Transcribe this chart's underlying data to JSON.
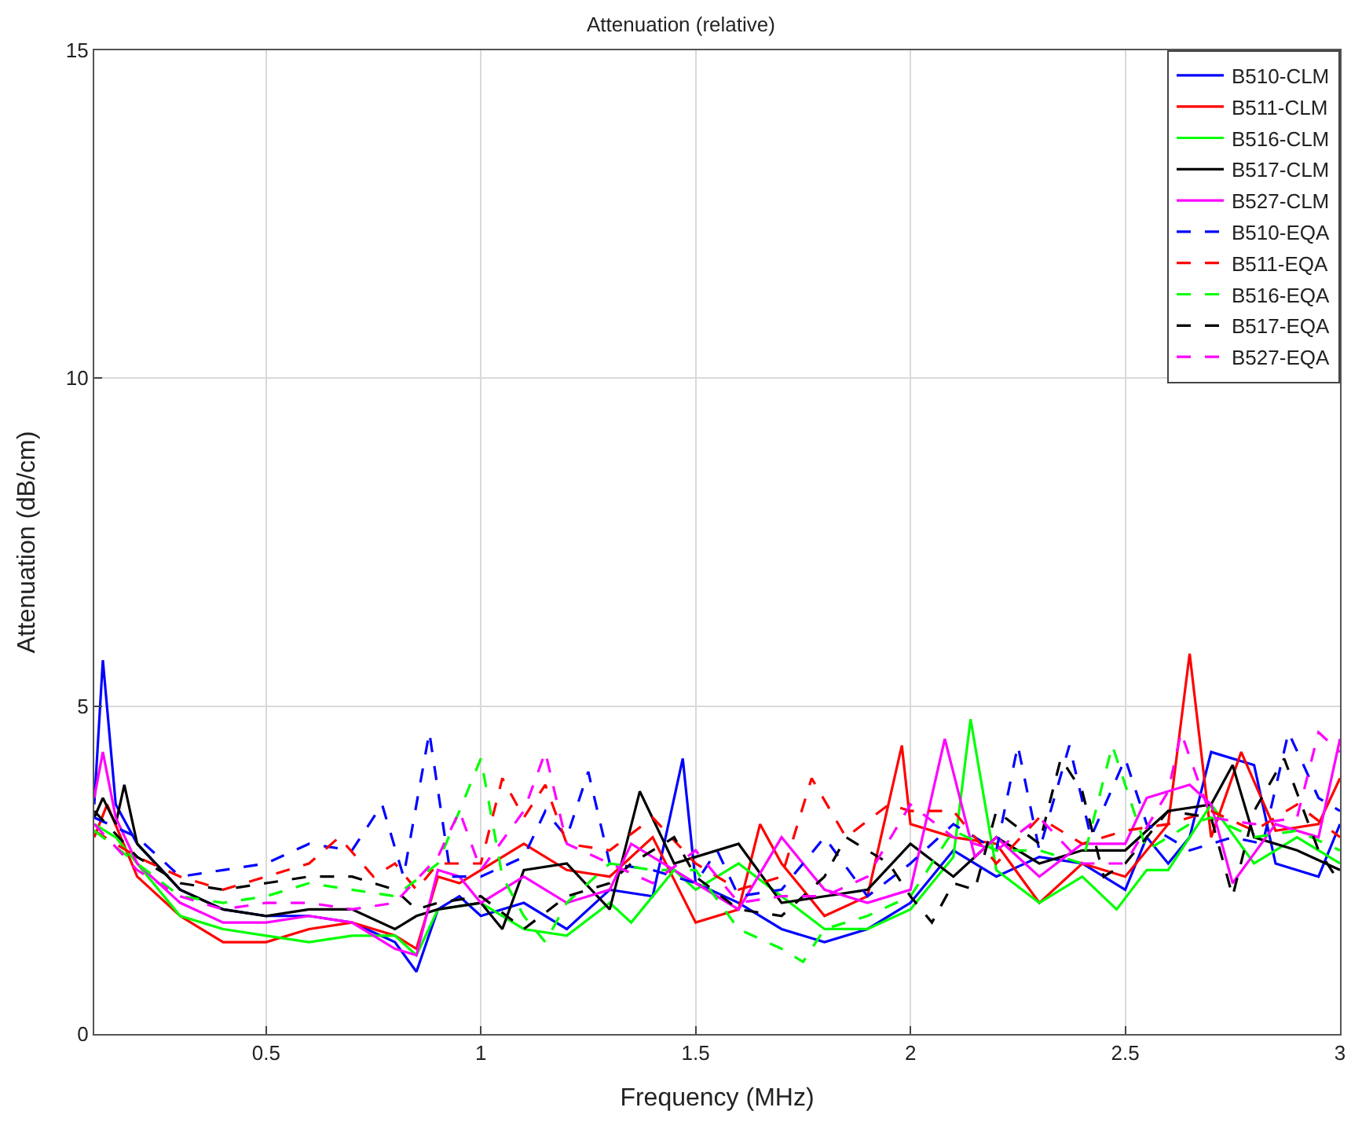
{
  "chart_data": {
    "type": "line",
    "title": "Attenuation (relative)",
    "xlabel": "Frequency (MHz)",
    "ylabel": "Attenuation (dB/cm)",
    "xlim": [
      0.1,
      3
    ],
    "ylim": [
      0,
      15
    ],
    "xticks": [
      0.5,
      1,
      1.5,
      2,
      2.5,
      3
    ],
    "yticks": [
      0,
      5,
      10,
      15
    ],
    "grid": true,
    "legend": "top right",
    "marker": "none",
    "series": [
      {
        "name": "B510-CLM",
        "color": "#0000ff",
        "line_style": "solid",
        "x": [
          0.1,
          0.12,
          0.15,
          0.2,
          0.3,
          0.4,
          0.5,
          0.6,
          0.7,
          0.8,
          0.85,
          0.9,
          0.95,
          1.0,
          1.1,
          1.2,
          1.3,
          1.4,
          1.47,
          1.5,
          1.6,
          1.7,
          1.8,
          1.9,
          2.0,
          2.1,
          2.2,
          2.3,
          2.4,
          2.5,
          2.55,
          2.6,
          2.65,
          2.7,
          2.8,
          2.85,
          2.95,
          3.0
        ],
        "values": [
          3.5,
          5.7,
          3.5,
          2.9,
          2.2,
          1.9,
          1.8,
          1.8,
          1.7,
          1.4,
          0.95,
          1.9,
          2.1,
          1.8,
          2.0,
          1.6,
          2.2,
          2.1,
          4.2,
          2.3,
          2.0,
          1.6,
          1.4,
          1.6,
          2.0,
          2.8,
          2.4,
          2.7,
          2.6,
          2.2,
          3.0,
          2.6,
          3.0,
          4.3,
          4.1,
          2.6,
          2.4,
          3.2
        ]
      },
      {
        "name": "B511-CLM",
        "color": "#ff0000",
        "line_style": "solid",
        "x": [
          0.1,
          0.13,
          0.2,
          0.3,
          0.4,
          0.5,
          0.6,
          0.7,
          0.8,
          0.85,
          0.9,
          0.95,
          1.0,
          1.1,
          1.2,
          1.3,
          1.4,
          1.5,
          1.6,
          1.65,
          1.7,
          1.8,
          1.9,
          1.98,
          2.0,
          2.1,
          2.2,
          2.3,
          2.4,
          2.5,
          2.6,
          2.65,
          2.7,
          2.77,
          2.85,
          2.95,
          3.0
        ],
        "values": [
          3.0,
          3.5,
          2.4,
          1.8,
          1.4,
          1.4,
          1.6,
          1.7,
          1.5,
          1.3,
          2.4,
          2.3,
          2.5,
          2.9,
          2.5,
          2.4,
          3.0,
          1.7,
          1.9,
          3.2,
          2.6,
          1.8,
          2.1,
          4.4,
          3.2,
          3.0,
          2.9,
          2.0,
          2.6,
          2.4,
          3.2,
          5.8,
          3.0,
          4.3,
          3.1,
          3.2,
          3.9
        ]
      },
      {
        "name": "B516-CLM",
        "color": "#00ff00",
        "line_style": "solid",
        "x": [
          0.1,
          0.15,
          0.2,
          0.3,
          0.4,
          0.5,
          0.6,
          0.7,
          0.8,
          0.85,
          0.9,
          1.0,
          1.1,
          1.2,
          1.3,
          1.35,
          1.45,
          1.5,
          1.6,
          1.7,
          1.8,
          1.9,
          2.0,
          2.1,
          2.14,
          2.2,
          2.3,
          2.4,
          2.48,
          2.55,
          2.6,
          2.7,
          2.8,
          2.9,
          3.0
        ],
        "values": [
          3.2,
          3.0,
          2.6,
          1.8,
          1.6,
          1.5,
          1.4,
          1.5,
          1.5,
          1.2,
          1.9,
          2.0,
          1.6,
          1.5,
          2.0,
          1.7,
          2.5,
          2.2,
          2.6,
          2.1,
          1.6,
          1.6,
          1.9,
          2.7,
          4.8,
          2.5,
          2.0,
          2.4,
          1.9,
          2.5,
          2.5,
          3.5,
          2.6,
          3.0,
          2.6
        ]
      },
      {
        "name": "B517-CLM",
        "color": "#000000",
        "line_style": "solid",
        "x": [
          0.1,
          0.12,
          0.15,
          0.17,
          0.2,
          0.3,
          0.4,
          0.5,
          0.6,
          0.7,
          0.8,
          0.85,
          0.9,
          1.0,
          1.05,
          1.1,
          1.2,
          1.3,
          1.37,
          1.45,
          1.5,
          1.6,
          1.7,
          1.8,
          1.9,
          2.0,
          2.1,
          2.2,
          2.3,
          2.4,
          2.5,
          2.6,
          2.7,
          2.75,
          2.8,
          2.9,
          3.0
        ],
        "values": [
          3.3,
          3.6,
          3.2,
          3.8,
          2.9,
          2.2,
          1.9,
          1.8,
          1.9,
          1.9,
          1.6,
          1.8,
          1.9,
          2.0,
          1.6,
          2.5,
          2.6,
          1.9,
          3.7,
          2.6,
          2.7,
          2.9,
          2.0,
          2.1,
          2.2,
          2.9,
          2.4,
          3.0,
          2.6,
          2.8,
          2.8,
          3.4,
          3.5,
          4.1,
          3.0,
          2.8,
          2.5
        ]
      },
      {
        "name": "B527-CLM",
        "color": "#ff00ff",
        "line_style": "solid",
        "x": [
          0.1,
          0.12,
          0.15,
          0.2,
          0.3,
          0.4,
          0.5,
          0.6,
          0.7,
          0.8,
          0.85,
          0.9,
          0.95,
          1.0,
          1.1,
          1.2,
          1.3,
          1.35,
          1.45,
          1.5,
          1.6,
          1.7,
          1.8,
          1.9,
          2.0,
          2.08,
          2.15,
          2.2,
          2.3,
          2.4,
          2.5,
          2.55,
          2.65,
          2.7,
          2.75,
          2.85,
          2.95,
          3.0
        ],
        "values": [
          3.6,
          4.3,
          3.3,
          2.6,
          2.0,
          1.7,
          1.7,
          1.8,
          1.7,
          1.3,
          1.2,
          2.5,
          2.4,
          2.0,
          2.4,
          2.0,
          2.2,
          2.9,
          2.5,
          2.3,
          1.9,
          3.0,
          2.2,
          2.0,
          2.2,
          4.5,
          2.7,
          3.0,
          2.4,
          2.9,
          2.9,
          3.6,
          3.8,
          3.5,
          2.3,
          3.2,
          3.0,
          4.5
        ]
      },
      {
        "name": "B510-EQA",
        "color": "#0000ff",
        "line_style": "dashed",
        "x": [
          0.1,
          0.2,
          0.3,
          0.4,
          0.5,
          0.6,
          0.7,
          0.77,
          0.82,
          0.88,
          0.93,
          1.0,
          1.1,
          1.15,
          1.2,
          1.25,
          1.3,
          1.4,
          1.5,
          1.55,
          1.6,
          1.7,
          1.8,
          1.9,
          2.0,
          2.1,
          2.2,
          2.25,
          2.3,
          2.37,
          2.42,
          2.5,
          2.55,
          2.65,
          2.75,
          2.82,
          2.88,
          2.95,
          3.0
        ],
        "values": [
          3.3,
          3.0,
          2.4,
          2.5,
          2.6,
          2.9,
          2.8,
          3.5,
          2.4,
          4.6,
          2.4,
          2.4,
          2.7,
          3.4,
          3.0,
          4.0,
          2.6,
          2.5,
          2.3,
          2.8,
          2.1,
          2.2,
          3.0,
          2.1,
          2.6,
          3.2,
          2.8,
          4.4,
          2.8,
          4.4,
          3.0,
          4.2,
          3.2,
          2.8,
          3.0,
          2.9,
          4.6,
          3.6,
          3.4
        ]
      },
      {
        "name": "B511-EQA",
        "color": "#ff0000",
        "line_style": "dashed",
        "x": [
          0.1,
          0.2,
          0.3,
          0.4,
          0.5,
          0.6,
          0.67,
          0.75,
          0.8,
          0.85,
          0.9,
          1.0,
          1.05,
          1.1,
          1.15,
          1.2,
          1.3,
          1.4,
          1.5,
          1.6,
          1.7,
          1.77,
          1.85,
          1.95,
          2.0,
          2.1,
          2.2,
          2.3,
          2.4,
          2.5,
          2.6,
          2.7,
          2.8,
          2.9,
          3.0
        ],
        "values": [
          3.1,
          2.7,
          2.4,
          2.2,
          2.4,
          2.6,
          3.0,
          2.4,
          2.6,
          2.2,
          2.6,
          2.6,
          3.9,
          3.3,
          3.8,
          2.9,
          2.8,
          3.3,
          2.6,
          2.2,
          2.4,
          3.9,
          3.0,
          3.5,
          3.4,
          3.4,
          2.6,
          3.3,
          2.9,
          3.1,
          3.2,
          3.4,
          3.1,
          3.5,
          3.0
        ]
      },
      {
        "name": "B516-EQA",
        "color": "#00ff00",
        "line_style": "dashed",
        "x": [
          0.1,
          0.2,
          0.3,
          0.4,
          0.5,
          0.6,
          0.7,
          0.8,
          0.9,
          1.0,
          1.05,
          1.1,
          1.15,
          1.2,
          1.3,
          1.4,
          1.5,
          1.6,
          1.7,
          1.75,
          1.8,
          1.9,
          2.0,
          2.1,
          2.2,
          2.3,
          2.4,
          2.47,
          2.55,
          2.65,
          2.7,
          2.8,
          2.9,
          3.0
        ],
        "values": [
          3.1,
          2.6,
          2.1,
          2.0,
          2.1,
          2.3,
          2.2,
          2.1,
          2.6,
          4.2,
          2.4,
          1.8,
          1.4,
          2.0,
          2.6,
          2.5,
          2.5,
          1.6,
          1.3,
          1.1,
          1.6,
          1.8,
          2.1,
          3.1,
          2.8,
          2.8,
          2.6,
          4.4,
          2.8,
          3.2,
          3.3,
          3.0,
          3.1,
          2.8
        ]
      },
      {
        "name": "B517-EQA",
        "color": "#000000",
        "line_style": "dashed",
        "x": [
          0.1,
          0.2,
          0.3,
          0.4,
          0.5,
          0.6,
          0.7,
          0.8,
          0.85,
          0.9,
          1.0,
          1.1,
          1.2,
          1.3,
          1.35,
          1.45,
          1.5,
          1.6,
          1.7,
          1.8,
          1.85,
          1.95,
          2.0,
          2.05,
          2.1,
          2.15,
          2.2,
          2.3,
          2.35,
          2.4,
          2.45,
          2.5,
          2.6,
          2.7,
          2.75,
          2.8,
          2.87,
          2.95,
          3.0
        ],
        "values": [
          3.4,
          2.7,
          2.3,
          2.2,
          2.3,
          2.4,
          2.4,
          2.2,
          1.9,
          2.0,
          2.1,
          1.6,
          2.1,
          2.3,
          2.6,
          3.0,
          2.4,
          1.9,
          1.8,
          2.4,
          3.0,
          2.6,
          2.1,
          1.7,
          2.3,
          2.2,
          3.4,
          2.9,
          4.2,
          3.7,
          2.4,
          2.6,
          3.4,
          3.3,
          2.1,
          3.4,
          4.2,
          2.8,
          2.3
        ]
      },
      {
        "name": "B527-EQA",
        "color": "#ff00ff",
        "line_style": "dashed",
        "x": [
          0.1,
          0.2,
          0.3,
          0.4,
          0.5,
          0.6,
          0.7,
          0.8,
          0.9,
          0.95,
          1.0,
          1.1,
          1.15,
          1.2,
          1.3,
          1.4,
          1.5,
          1.6,
          1.7,
          1.8,
          1.9,
          2.0,
          2.1,
          2.2,
          2.3,
          2.4,
          2.5,
          2.6,
          2.63,
          2.7,
          2.8,
          2.9,
          2.95,
          3.0
        ],
        "values": [
          3.2,
          2.5,
          2.1,
          1.9,
          2.0,
          2.0,
          1.9,
          2.0,
          2.7,
          3.4,
          2.5,
          3.4,
          4.3,
          2.9,
          2.6,
          2.3,
          2.8,
          2.0,
          2.1,
          2.1,
          2.4,
          3.5,
          3.0,
          2.8,
          3.3,
          2.6,
          2.6,
          3.7,
          4.6,
          3.3,
          3.2,
          3.3,
          4.6,
          4.3
        ]
      }
    ]
  }
}
